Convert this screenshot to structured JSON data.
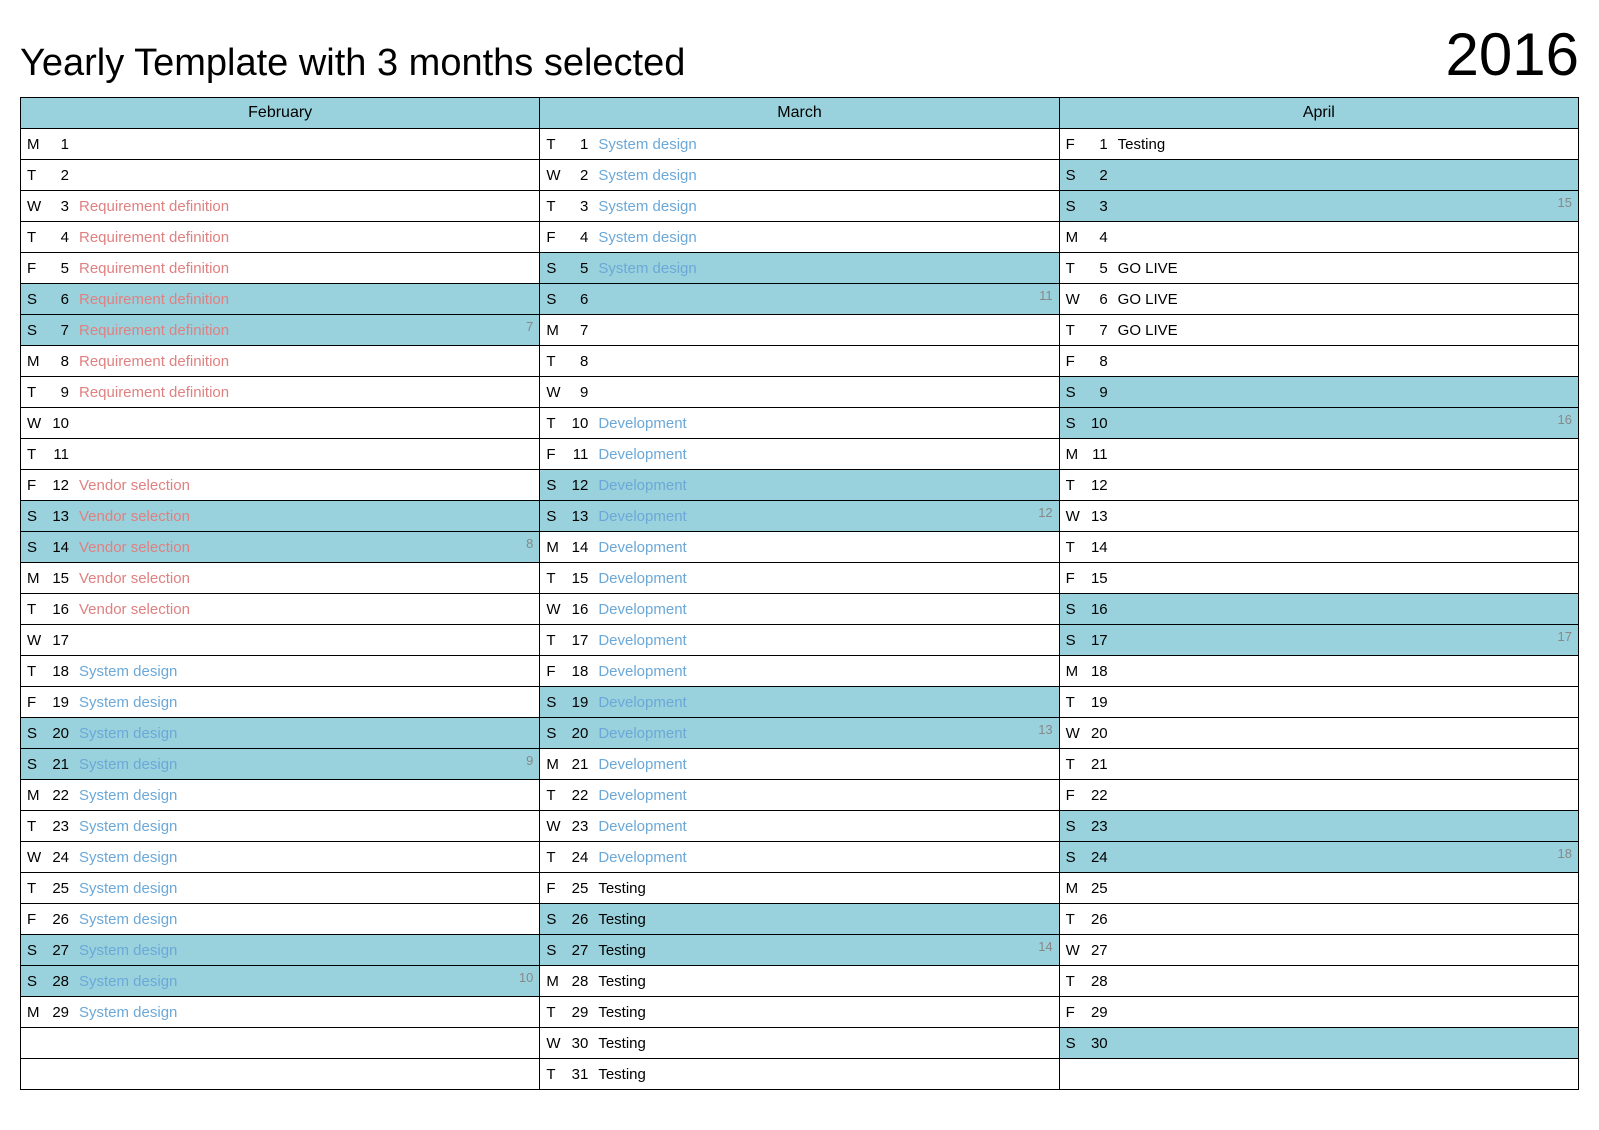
{
  "title": "Yearly Template with 3 months selected",
  "year": "2016",
  "colors": {
    "weekend_bg": "#99d2dd",
    "header_bg": "#99d2dd",
    "border": "#000000",
    "week_num": "#888888",
    "task_red": "#e08080",
    "task_blue": "#6ba8d8",
    "task_black": "#000000"
  },
  "row_count": 31,
  "months": [
    {
      "name": "February",
      "days": [
        {
          "dow": "M",
          "num": "1",
          "task": "",
          "color": "",
          "weekend": false,
          "week": ""
        },
        {
          "dow": "T",
          "num": "2",
          "task": "",
          "color": "",
          "weekend": false,
          "week": ""
        },
        {
          "dow": "W",
          "num": "3",
          "task": "Requirement definition",
          "color": "red",
          "weekend": false,
          "week": ""
        },
        {
          "dow": "T",
          "num": "4",
          "task": "Requirement definition",
          "color": "red",
          "weekend": false,
          "week": ""
        },
        {
          "dow": "F",
          "num": "5",
          "task": "Requirement definition",
          "color": "red",
          "weekend": false,
          "week": ""
        },
        {
          "dow": "S",
          "num": "6",
          "task": "Requirement definition",
          "color": "red",
          "weekend": true,
          "week": ""
        },
        {
          "dow": "S",
          "num": "7",
          "task": "Requirement definition",
          "color": "red",
          "weekend": true,
          "week": "7"
        },
        {
          "dow": "M",
          "num": "8",
          "task": "Requirement definition",
          "color": "red",
          "weekend": false,
          "week": ""
        },
        {
          "dow": "T",
          "num": "9",
          "task": "Requirement definition",
          "color": "red",
          "weekend": false,
          "week": ""
        },
        {
          "dow": "W",
          "num": "10",
          "task": "",
          "color": "",
          "weekend": false,
          "week": ""
        },
        {
          "dow": "T",
          "num": "11",
          "task": "",
          "color": "",
          "weekend": false,
          "week": ""
        },
        {
          "dow": "F",
          "num": "12",
          "task": "Vendor selection",
          "color": "red",
          "weekend": false,
          "week": ""
        },
        {
          "dow": "S",
          "num": "13",
          "task": "Vendor selection",
          "color": "red",
          "weekend": true,
          "week": ""
        },
        {
          "dow": "S",
          "num": "14",
          "task": "Vendor selection",
          "color": "red",
          "weekend": true,
          "week": "8"
        },
        {
          "dow": "M",
          "num": "15",
          "task": "Vendor selection",
          "color": "red",
          "weekend": false,
          "week": ""
        },
        {
          "dow": "T",
          "num": "16",
          "task": "Vendor selection",
          "color": "red",
          "weekend": false,
          "week": ""
        },
        {
          "dow": "W",
          "num": "17",
          "task": "",
          "color": "",
          "weekend": false,
          "week": ""
        },
        {
          "dow": "T",
          "num": "18",
          "task": "System design",
          "color": "blue",
          "weekend": false,
          "week": ""
        },
        {
          "dow": "F",
          "num": "19",
          "task": "System design",
          "color": "blue",
          "weekend": false,
          "week": ""
        },
        {
          "dow": "S",
          "num": "20",
          "task": "System design",
          "color": "blue",
          "weekend": true,
          "week": ""
        },
        {
          "dow": "S",
          "num": "21",
          "task": "System design",
          "color": "blue",
          "weekend": true,
          "week": "9"
        },
        {
          "dow": "M",
          "num": "22",
          "task": "System design",
          "color": "blue",
          "weekend": false,
          "week": ""
        },
        {
          "dow": "T",
          "num": "23",
          "task": "System design",
          "color": "blue",
          "weekend": false,
          "week": ""
        },
        {
          "dow": "W",
          "num": "24",
          "task": "System design",
          "color": "blue",
          "weekend": false,
          "week": ""
        },
        {
          "dow": "T",
          "num": "25",
          "task": "System design",
          "color": "blue",
          "weekend": false,
          "week": ""
        },
        {
          "dow": "F",
          "num": "26",
          "task": "System design",
          "color": "blue",
          "weekend": false,
          "week": ""
        },
        {
          "dow": "S",
          "num": "27",
          "task": "System design",
          "color": "blue",
          "weekend": true,
          "week": ""
        },
        {
          "dow": "S",
          "num": "28",
          "task": "System design",
          "color": "blue",
          "weekend": true,
          "week": "10"
        },
        {
          "dow": "M",
          "num": "29",
          "task": "System design",
          "color": "blue",
          "weekend": false,
          "week": ""
        }
      ]
    },
    {
      "name": "March",
      "days": [
        {
          "dow": "T",
          "num": "1",
          "task": "System design",
          "color": "blue",
          "weekend": false,
          "week": ""
        },
        {
          "dow": "W",
          "num": "2",
          "task": "System design",
          "color": "blue",
          "weekend": false,
          "week": ""
        },
        {
          "dow": "T",
          "num": "3",
          "task": "System design",
          "color": "blue",
          "weekend": false,
          "week": ""
        },
        {
          "dow": "F",
          "num": "4",
          "task": "System design",
          "color": "blue",
          "weekend": false,
          "week": ""
        },
        {
          "dow": "S",
          "num": "5",
          "task": "System design",
          "color": "blue",
          "weekend": true,
          "week": ""
        },
        {
          "dow": "S",
          "num": "6",
          "task": "",
          "color": "",
          "weekend": true,
          "week": "11"
        },
        {
          "dow": "M",
          "num": "7",
          "task": "",
          "color": "",
          "weekend": false,
          "week": ""
        },
        {
          "dow": "T",
          "num": "8",
          "task": "",
          "color": "",
          "weekend": false,
          "week": ""
        },
        {
          "dow": "W",
          "num": "9",
          "task": "",
          "color": "",
          "weekend": false,
          "week": ""
        },
        {
          "dow": "T",
          "num": "10",
          "task": "Development",
          "color": "blue",
          "weekend": false,
          "week": ""
        },
        {
          "dow": "F",
          "num": "11",
          "task": "Development",
          "color": "blue",
          "weekend": false,
          "week": ""
        },
        {
          "dow": "S",
          "num": "12",
          "task": "Development",
          "color": "blue",
          "weekend": true,
          "week": ""
        },
        {
          "dow": "S",
          "num": "13",
          "task": "Development",
          "color": "blue",
          "weekend": true,
          "week": "12"
        },
        {
          "dow": "M",
          "num": "14",
          "task": "Development",
          "color": "blue",
          "weekend": false,
          "week": ""
        },
        {
          "dow": "T",
          "num": "15",
          "task": "Development",
          "color": "blue",
          "weekend": false,
          "week": ""
        },
        {
          "dow": "W",
          "num": "16",
          "task": "Development",
          "color": "blue",
          "weekend": false,
          "week": ""
        },
        {
          "dow": "T",
          "num": "17",
          "task": "Development",
          "color": "blue",
          "weekend": false,
          "week": ""
        },
        {
          "dow": "F",
          "num": "18",
          "task": "Development",
          "color": "blue",
          "weekend": false,
          "week": ""
        },
        {
          "dow": "S",
          "num": "19",
          "task": "Development",
          "color": "blue",
          "weekend": true,
          "week": ""
        },
        {
          "dow": "S",
          "num": "20",
          "task": "Development",
          "color": "blue",
          "weekend": true,
          "week": "13"
        },
        {
          "dow": "M",
          "num": "21",
          "task": "Development",
          "color": "blue",
          "weekend": false,
          "week": ""
        },
        {
          "dow": "T",
          "num": "22",
          "task": "Development",
          "color": "blue",
          "weekend": false,
          "week": ""
        },
        {
          "dow": "W",
          "num": "23",
          "task": "Development",
          "color": "blue",
          "weekend": false,
          "week": ""
        },
        {
          "dow": "T",
          "num": "24",
          "task": "Development",
          "color": "blue",
          "weekend": false,
          "week": ""
        },
        {
          "dow": "F",
          "num": "25",
          "task": "Testing",
          "color": "black",
          "weekend": false,
          "week": ""
        },
        {
          "dow": "S",
          "num": "26",
          "task": "Testing",
          "color": "black",
          "weekend": true,
          "week": ""
        },
        {
          "dow": "S",
          "num": "27",
          "task": "Testing",
          "color": "black",
          "weekend": true,
          "week": "14"
        },
        {
          "dow": "M",
          "num": "28",
          "task": "Testing",
          "color": "black",
          "weekend": false,
          "week": ""
        },
        {
          "dow": "T",
          "num": "29",
          "task": "Testing",
          "color": "black",
          "weekend": false,
          "week": ""
        },
        {
          "dow": "W",
          "num": "30",
          "task": "Testing",
          "color": "black",
          "weekend": false,
          "week": ""
        },
        {
          "dow": "T",
          "num": "31",
          "task": "Testing",
          "color": "black",
          "weekend": false,
          "week": ""
        }
      ]
    },
    {
      "name": "April",
      "days": [
        {
          "dow": "F",
          "num": "1",
          "task": "Testing",
          "color": "black",
          "weekend": false,
          "week": ""
        },
        {
          "dow": "S",
          "num": "2",
          "task": "",
          "color": "",
          "weekend": true,
          "week": ""
        },
        {
          "dow": "S",
          "num": "3",
          "task": "",
          "color": "",
          "weekend": true,
          "week": "15"
        },
        {
          "dow": "M",
          "num": "4",
          "task": "",
          "color": "",
          "weekend": false,
          "week": ""
        },
        {
          "dow": "T",
          "num": "5",
          "task": "GO LIVE",
          "color": "black",
          "weekend": false,
          "week": ""
        },
        {
          "dow": "W",
          "num": "6",
          "task": "GO LIVE",
          "color": "black",
          "weekend": false,
          "week": ""
        },
        {
          "dow": "T",
          "num": "7",
          "task": "GO LIVE",
          "color": "black",
          "weekend": false,
          "week": ""
        },
        {
          "dow": "F",
          "num": "8",
          "task": "",
          "color": "",
          "weekend": false,
          "week": ""
        },
        {
          "dow": "S",
          "num": "9",
          "task": "",
          "color": "",
          "weekend": true,
          "week": ""
        },
        {
          "dow": "S",
          "num": "10",
          "task": "",
          "color": "",
          "weekend": true,
          "week": "16"
        },
        {
          "dow": "M",
          "num": "11",
          "task": "",
          "color": "",
          "weekend": false,
          "week": ""
        },
        {
          "dow": "T",
          "num": "12",
          "task": "",
          "color": "",
          "weekend": false,
          "week": ""
        },
        {
          "dow": "W",
          "num": "13",
          "task": "",
          "color": "",
          "weekend": false,
          "week": ""
        },
        {
          "dow": "T",
          "num": "14",
          "task": "",
          "color": "",
          "weekend": false,
          "week": ""
        },
        {
          "dow": "F",
          "num": "15",
          "task": "",
          "color": "",
          "weekend": false,
          "week": ""
        },
        {
          "dow": "S",
          "num": "16",
          "task": "",
          "color": "",
          "weekend": true,
          "week": ""
        },
        {
          "dow": "S",
          "num": "17",
          "task": "",
          "color": "",
          "weekend": true,
          "week": "17"
        },
        {
          "dow": "M",
          "num": "18",
          "task": "",
          "color": "",
          "weekend": false,
          "week": ""
        },
        {
          "dow": "T",
          "num": "19",
          "task": "",
          "color": "",
          "weekend": false,
          "week": ""
        },
        {
          "dow": "W",
          "num": "20",
          "task": "",
          "color": "",
          "weekend": false,
          "week": ""
        },
        {
          "dow": "T",
          "num": "21",
          "task": "",
          "color": "",
          "weekend": false,
          "week": ""
        },
        {
          "dow": "F",
          "num": "22",
          "task": "",
          "color": "",
          "weekend": false,
          "week": ""
        },
        {
          "dow": "S",
          "num": "23",
          "task": "",
          "color": "",
          "weekend": true,
          "week": ""
        },
        {
          "dow": "S",
          "num": "24",
          "task": "",
          "color": "",
          "weekend": true,
          "week": "18"
        },
        {
          "dow": "M",
          "num": "25",
          "task": "",
          "color": "",
          "weekend": false,
          "week": ""
        },
        {
          "dow": "T",
          "num": "26",
          "task": "",
          "color": "",
          "weekend": false,
          "week": ""
        },
        {
          "dow": "W",
          "num": "27",
          "task": "",
          "color": "",
          "weekend": false,
          "week": ""
        },
        {
          "dow": "T",
          "num": "28",
          "task": "",
          "color": "",
          "weekend": false,
          "week": ""
        },
        {
          "dow": "F",
          "num": "29",
          "task": "",
          "color": "",
          "weekend": false,
          "week": ""
        },
        {
          "dow": "S",
          "num": "30",
          "task": "",
          "color": "",
          "weekend": true,
          "week": ""
        }
      ]
    }
  ]
}
